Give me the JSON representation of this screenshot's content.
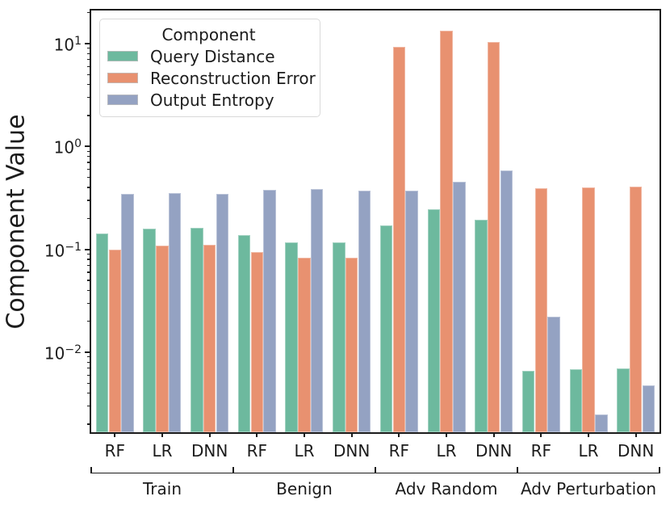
{
  "chart_data": {
    "type": "bar",
    "title": "",
    "ylabel": "Component Value",
    "xlabel": "",
    "y_scale": "log",
    "ylim": [
      0.00167,
      21
    ],
    "grid": false,
    "legend_position": "upper-left-inside",
    "legend_title": "Component",
    "y_ticks": [
      {
        "base": "10",
        "exp": "1",
        "value": 10
      },
      {
        "base": "10",
        "exp": "0",
        "value": 1
      },
      {
        "base": "10",
        "exp": "−1",
        "value": 0.1
      },
      {
        "base": "10",
        "exp": "−2",
        "value": 0.01
      }
    ],
    "group_categories": [
      "Train",
      "Benign",
      "Adv Random",
      "Adv Perturbation"
    ],
    "models_per_category": [
      "RF",
      "LR",
      "DNN"
    ],
    "x_tick_labels": [
      "RF",
      "LR",
      "DNN",
      "RF",
      "LR",
      "DNN",
      "RF",
      "LR",
      "DNN",
      "RF",
      "LR",
      "DNN"
    ],
    "series": [
      {
        "name": "Query Distance",
        "color": "#6db99e",
        "values": [
          0.143,
          0.159,
          0.161,
          0.138,
          0.117,
          0.118,
          0.171,
          0.248,
          0.193,
          0.0066,
          0.0068,
          0.007
        ]
      },
      {
        "name": "Reconstruction Error",
        "color": "#e89170",
        "values": [
          0.1,
          0.109,
          0.11,
          0.095,
          0.083,
          0.083,
          9.3,
          13.4,
          10.3,
          0.39,
          0.4,
          0.41
        ]
      },
      {
        "name": "Output Entropy",
        "color": "#94a2c2",
        "values": [
          0.348,
          0.352,
          0.348,
          0.379,
          0.388,
          0.375,
          0.374,
          0.454,
          0.589,
          0.022,
          0.0025,
          0.0048
        ]
      }
    ],
    "axis_color": "#1c1c1c"
  }
}
